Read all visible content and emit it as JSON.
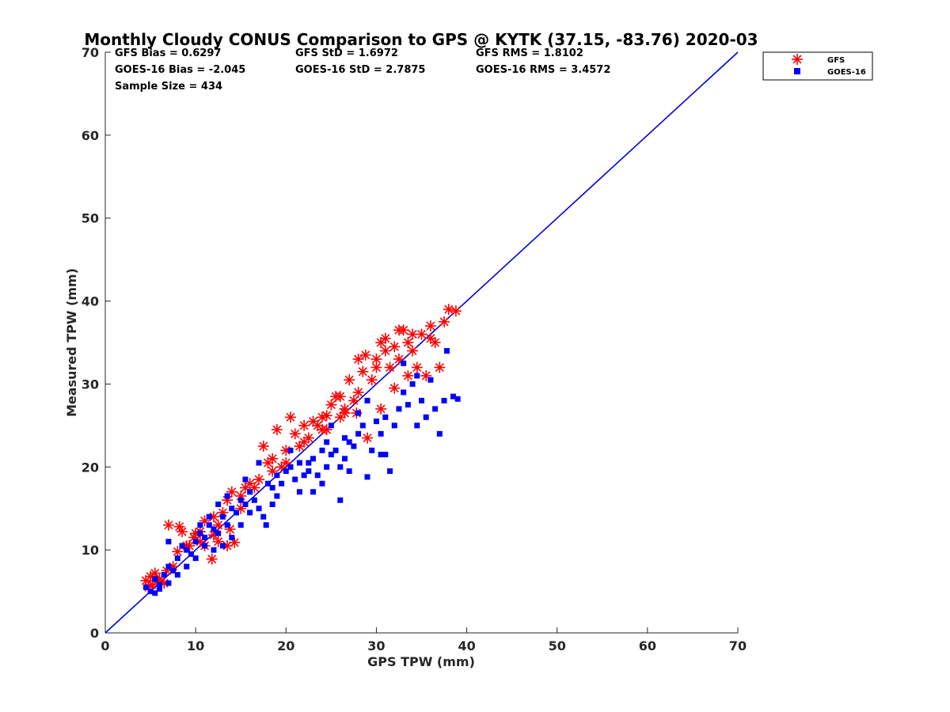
{
  "chart_data": {
    "type": "scatter",
    "title": "Monthly Cloudy CONUS Comparison to GPS @ KYTK (37.15, -83.76) 2020-03",
    "xlabel": "GPS TPW (mm)",
    "ylabel": "Measured TPW (mm)",
    "xlim": [
      0,
      70
    ],
    "ylim": [
      0,
      70
    ],
    "xticks": [
      0,
      10,
      20,
      30,
      40,
      50,
      60,
      70
    ],
    "yticks": [
      0,
      10,
      20,
      30,
      40,
      50,
      60,
      70
    ],
    "grid": false,
    "legend_position": "top-right outside",
    "stats": [
      [
        "GFS Bias = 0.6297",
        "GFS StD = 1.6972",
        "GFS RMS = 1.8102"
      ],
      [
        "GOES-16 Bias = -2.045",
        "GOES-16 StD = 2.7875",
        "GOES-16 RMS = 3.4572"
      ],
      [
        "Sample Size = 434"
      ]
    ],
    "reference_line": {
      "x": [
        0,
        70
      ],
      "y": [
        0,
        70
      ],
      "color": "#0000dd"
    },
    "series": [
      {
        "name": "GFS",
        "marker": "asterisk",
        "color": "#ff0000",
        "points": [
          [
            4.5,
            6.3
          ],
          [
            5,
            6.8
          ],
          [
            5.5,
            7.2
          ],
          [
            6,
            6.5
          ],
          [
            5.2,
            5.8
          ],
          [
            6.5,
            6.0
          ],
          [
            7,
            13
          ],
          [
            8.2,
            12.8
          ],
          [
            8,
            9.8
          ],
          [
            9.3,
            10.5
          ],
          [
            9.8,
            11.5
          ],
          [
            10.5,
            12.2
          ],
          [
            11,
            13.5
          ],
          [
            11.8,
            8.9
          ],
          [
            12,
            11.8
          ],
          [
            12.5,
            13
          ],
          [
            13,
            14.5
          ],
          [
            13.5,
            16
          ],
          [
            14,
            17
          ],
          [
            14.3,
            10.9
          ],
          [
            13.5,
            10.5
          ],
          [
            15,
            16.5
          ],
          [
            15.5,
            17.5
          ],
          [
            16,
            18
          ],
          [
            17,
            18.5
          ],
          [
            17.5,
            22.5
          ],
          [
            18,
            20.5
          ],
          [
            18.5,
            21
          ],
          [
            19,
            24.5
          ],
          [
            19.5,
            20
          ],
          [
            20,
            22
          ],
          [
            20.5,
            26
          ],
          [
            21,
            24
          ],
          [
            21.5,
            22.5
          ],
          [
            22,
            25
          ],
          [
            22.5,
            23.5
          ],
          [
            23,
            25.5
          ],
          [
            23.5,
            25
          ],
          [
            24,
            26
          ],
          [
            24.5,
            24.5
          ],
          [
            25,
            27.5
          ],
          [
            25.5,
            28.5
          ],
          [
            26,
            26
          ],
          [
            26.5,
            27
          ],
          [
            27,
            30.5
          ],
          [
            27.5,
            28
          ],
          [
            28,
            29
          ],
          [
            28.5,
            31.5
          ],
          [
            28.8,
            33.5
          ],
          [
            29,
            23.5
          ],
          [
            29.5,
            30.5
          ],
          [
            30,
            33
          ],
          [
            30.5,
            35
          ],
          [
            31,
            34
          ],
          [
            31.5,
            32
          ],
          [
            32,
            34.5
          ],
          [
            32.5,
            33
          ],
          [
            33,
            36.5
          ],
          [
            33.5,
            35
          ],
          [
            34,
            34
          ],
          [
            34.5,
            32
          ],
          [
            35,
            36
          ],
          [
            35.5,
            31
          ],
          [
            36,
            37
          ],
          [
            36.5,
            35
          ],
          [
            37,
            32
          ],
          [
            37.5,
            37.5
          ],
          [
            38,
            39
          ],
          [
            38.8,
            38.8
          ],
          [
            36,
            35.5
          ],
          [
            33.5,
            31
          ],
          [
            32,
            29.5
          ],
          [
            30.5,
            27
          ],
          [
            26,
            28.5
          ],
          [
            27.8,
            26.5
          ],
          [
            24,
            24.5
          ],
          [
            22,
            23
          ],
          [
            20,
            20.5
          ],
          [
            18.5,
            19.5
          ],
          [
            16.5,
            17.5
          ],
          [
            15,
            15
          ],
          [
            13.8,
            12.5
          ],
          [
            12.5,
            11
          ],
          [
            11,
            10.5
          ],
          [
            10,
            12
          ],
          [
            9,
            10.5
          ],
          [
            7.5,
            8
          ],
          [
            6.8,
            7.5
          ],
          [
            5.8,
            6.2
          ],
          [
            4.8,
            5.5
          ],
          [
            12,
            14
          ],
          [
            10.5,
            11
          ],
          [
            8.5,
            12.2
          ],
          [
            31,
            35.5
          ],
          [
            32.5,
            36.5
          ],
          [
            34,
            36
          ],
          [
            30,
            32
          ],
          [
            28,
            33
          ],
          [
            26.5,
            26.5
          ],
          [
            24.5,
            26.2
          ]
        ]
      },
      {
        "name": "GOES-16",
        "marker": "square",
        "color": "#0000ff",
        "points": [
          [
            4.5,
            5.5
          ],
          [
            5,
            5
          ],
          [
            5.5,
            6.5
          ],
          [
            6,
            5.8
          ],
          [
            6.5,
            7
          ],
          [
            7,
            8
          ],
          [
            7.5,
            7.5
          ],
          [
            8,
            9
          ],
          [
            8.5,
            10.5
          ],
          [
            9,
            10
          ],
          [
            9.5,
            9.5
          ],
          [
            10,
            11
          ],
          [
            10.5,
            12
          ],
          [
            11,
            11.5
          ],
          [
            11.5,
            13
          ],
          [
            12,
            12.5
          ],
          [
            12.5,
            12
          ],
          [
            13,
            14
          ],
          [
            13.5,
            13
          ],
          [
            14,
            15
          ],
          [
            14.5,
            14.5
          ],
          [
            15,
            16
          ],
          [
            15.5,
            15.5
          ],
          [
            16,
            17
          ],
          [
            16.5,
            16
          ],
          [
            17,
            15
          ],
          [
            17.5,
            14
          ],
          [
            18,
            18
          ],
          [
            18.5,
            17.5
          ],
          [
            19,
            19
          ],
          [
            19.5,
            18
          ],
          [
            20,
            19.5
          ],
          [
            20.5,
            20
          ],
          [
            21,
            18.5
          ],
          [
            21.5,
            17
          ],
          [
            22,
            19
          ],
          [
            22.5,
            20.5
          ],
          [
            23,
            21
          ],
          [
            23.5,
            19
          ],
          [
            24,
            22
          ],
          [
            24.5,
            20
          ],
          [
            25,
            21.5
          ],
          [
            25.5,
            22
          ],
          [
            26,
            20
          ],
          [
            26.5,
            21
          ],
          [
            27,
            23
          ],
          [
            27.5,
            22.5
          ],
          [
            28,
            24
          ],
          [
            28.5,
            25
          ],
          [
            29,
            18.8
          ],
          [
            29.5,
            22
          ],
          [
            30,
            25.5
          ],
          [
            30.5,
            21.5
          ],
          [
            31,
            26
          ],
          [
            31.5,
            19.5
          ],
          [
            32,
            25
          ],
          [
            32.5,
            27
          ],
          [
            33,
            29
          ],
          [
            33.5,
            27.5
          ],
          [
            34,
            30
          ],
          [
            34.5,
            25
          ],
          [
            35,
            28
          ],
          [
            35.5,
            26
          ],
          [
            36,
            30.5
          ],
          [
            36.5,
            27
          ],
          [
            37,
            24
          ],
          [
            37.5,
            28
          ],
          [
            38.5,
            28.5
          ],
          [
            39,
            28.2
          ],
          [
            37.8,
            34
          ],
          [
            17,
            20.5
          ],
          [
            17.8,
            13
          ],
          [
            16,
            14.5
          ],
          [
            15,
            13
          ],
          [
            14,
            11.5
          ],
          [
            13,
            10.5
          ],
          [
            12,
            10
          ],
          [
            11,
            10.5
          ],
          [
            10,
            9
          ],
          [
            9,
            8
          ],
          [
            8,
            7
          ],
          [
            7,
            6
          ],
          [
            6,
            5.3
          ],
          [
            5.5,
            4.8
          ],
          [
            7,
            11
          ],
          [
            12.5,
            15.5
          ],
          [
            13.5,
            16.5
          ],
          [
            18.5,
            15.5
          ],
          [
            19,
            16.5
          ],
          [
            20.5,
            22
          ],
          [
            21.5,
            20.5
          ],
          [
            22.5,
            19.5
          ],
          [
            23,
            17
          ],
          [
            24,
            18
          ],
          [
            26,
            16
          ],
          [
            30.5,
            24
          ],
          [
            31,
            21.5
          ],
          [
            33,
            32.5
          ],
          [
            34.5,
            31
          ],
          [
            27,
            19.5
          ],
          [
            28,
            26.5
          ],
          [
            29,
            28
          ],
          [
            25,
            25
          ],
          [
            24.5,
            23
          ],
          [
            26.5,
            23.5
          ],
          [
            15.5,
            18.5
          ],
          [
            11.5,
            14
          ],
          [
            10.5,
            13
          ]
        ]
      }
    ]
  }
}
